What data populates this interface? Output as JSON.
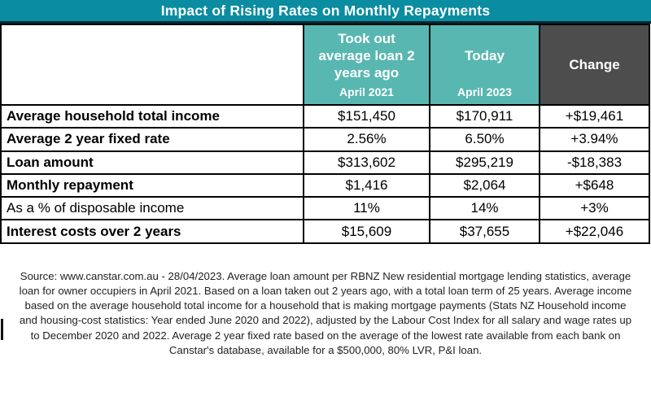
{
  "title": "Impact of Rising Rates on Monthly Repayments",
  "colors": {
    "title_bg": "#0a8ca1",
    "title_border": "#0c2a33",
    "header_teal": "#58b7b1",
    "header_dark": "#4d4d4d",
    "border": "#000000"
  },
  "header": {
    "past": {
      "main": "Took out average loan 2 years ago",
      "sub": "April 2021"
    },
    "today": {
      "main": "Today",
      "sub": "April 2023"
    },
    "change": {
      "main": "Change"
    }
  },
  "table": {
    "rows": [
      {
        "label": "Average household total income",
        "past": "$151,450",
        "today": "$170,911",
        "change": "+$19,461"
      },
      {
        "label": "Average 2 year fixed rate",
        "past": "2.56%",
        "today": "6.50%",
        "change": "+3.94%"
      },
      {
        "label": "Loan amount",
        "past": "$313,602",
        "today": "$295,219",
        "change": "-$18,383"
      },
      {
        "label": "Monthly repayment",
        "past": "$1,416",
        "today": "$2,064",
        "change": "+$648"
      },
      {
        "label": "As a % of disposable income",
        "past": "11%",
        "today": "14%",
        "change": "+3%"
      },
      {
        "label": "Interest costs over 2 years",
        "past": "$15,609",
        "today": "$37,655",
        "change": "+$22,046"
      }
    ]
  },
  "footnote": "Source: www.canstar.com.au - 28/04/2023. Average loan amount per RBNZ New residential mortgage lending statistics, average loan for owner occupiers in April 2021. Based on a loan taken out 2 years ago, with a total loan term of 25 years. Average income based on the average household total income for a household that is making mortgage payments (Stats NZ Household income and housing-cost statistics: Year ended June 2020 and 2022), adjusted by the Labour Cost Index for all salary and wage rates up to December 2020 and 2022.  Average 2 year fixed rate based on the average of the lowest rate available from each bank on Canstar's database, available for a $500,000, 80% LVR, P&I loan.",
  "chart_data": {
    "type": "table",
    "title": "Impact of Rising Rates on Monthly Repayments",
    "columns": [
      "",
      "Took out average loan 2 years ago (April 2021)",
      "Today (April 2023)",
      "Change"
    ],
    "rows": [
      [
        "Average household total income",
        "$151,450",
        "$170,911",
        "+$19,461"
      ],
      [
        "Average 2 year fixed rate",
        "2.56%",
        "6.50%",
        "+3.94%"
      ],
      [
        "Loan amount",
        "$313,602",
        "$295,219",
        "-$18,383"
      ],
      [
        "Monthly repayment",
        "$1,416",
        "$2,064",
        "+$648"
      ],
      [
        "As a % of disposable income",
        "11%",
        "14%",
        "+3%"
      ],
      [
        "Interest costs over 2 years",
        "$15,609",
        "$37,655",
        "+$22,046"
      ]
    ]
  }
}
